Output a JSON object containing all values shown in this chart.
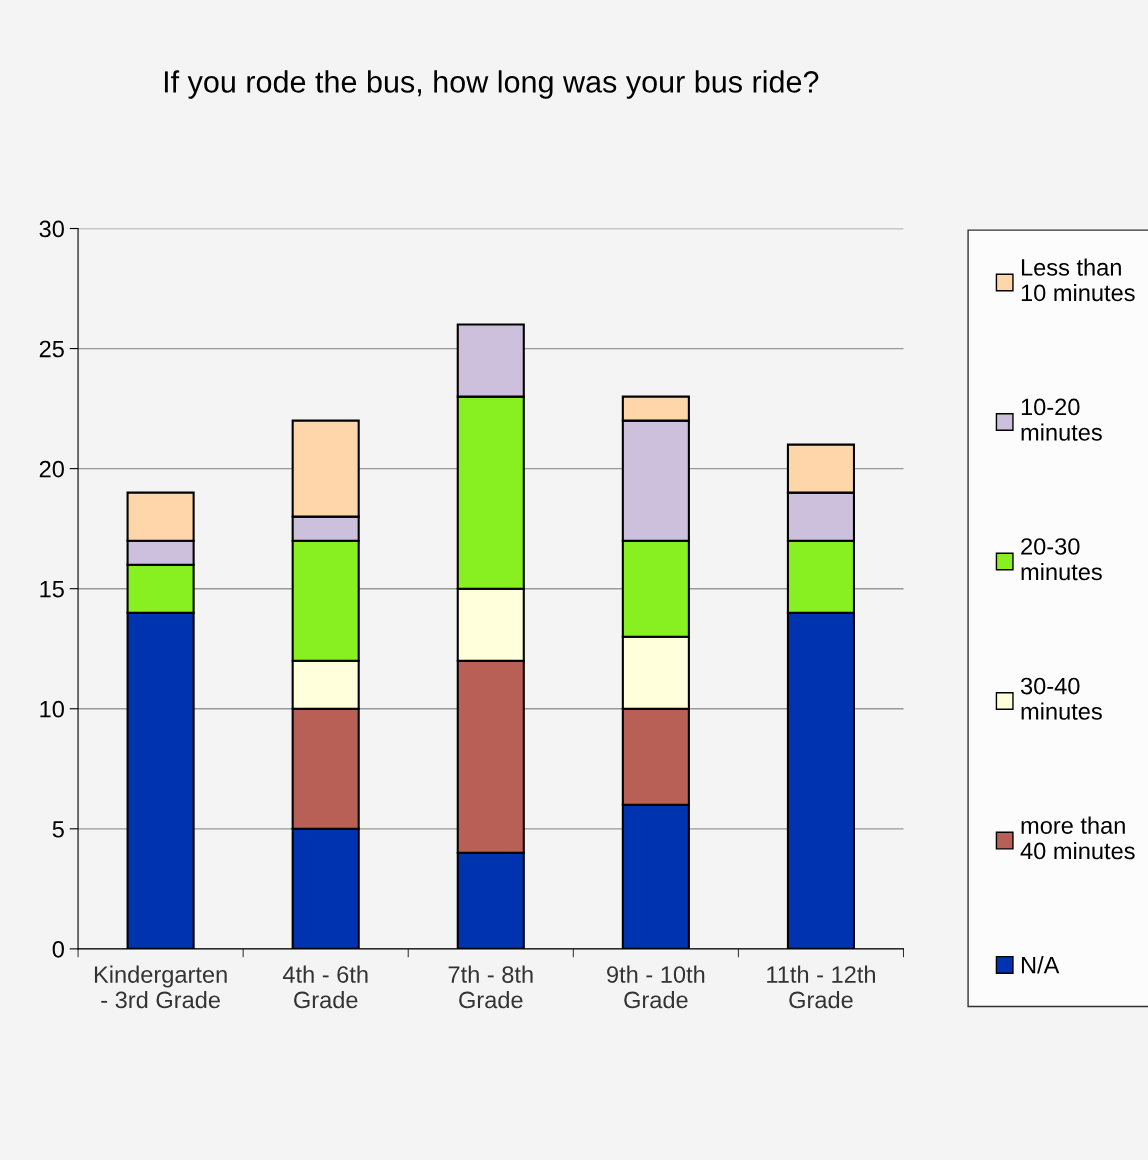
{
  "chart_data": {
    "type": "bar",
    "title": "If you rode the bus, how long was your bus ride?",
    "stacked": true,
    "categories": [
      "Kindergarten\n- 3rd Grade",
      "4th - 6th\nGrade",
      "7th - 8th\nGrade",
      "9th - 10th\nGrade",
      "11th - 12th\nGrade"
    ],
    "series": [
      {
        "name": "N/A",
        "color": "#0033b0",
        "values": [
          14,
          5,
          4,
          6,
          14
        ]
      },
      {
        "name": "more than\n40 minutes",
        "color": "#b86055",
        "values": [
          0,
          5,
          8,
          4,
          0
        ]
      },
      {
        "name": "30-40\nminutes",
        "color": "#ffffdc",
        "values": [
          0,
          2,
          3,
          3,
          0
        ]
      },
      {
        "name": "20-30\nminutes",
        "color": "#88f020",
        "values": [
          2,
          5,
          8,
          4,
          3
        ]
      },
      {
        "name": "10-20\nminutes",
        "color": "#cdc0dc",
        "values": [
          1,
          1,
          3,
          5,
          2
        ]
      },
      {
        "name": "Less than\n10 minutes",
        "color": "#ffd6aa",
        "values": [
          2,
          4,
          0,
          1,
          2
        ]
      }
    ],
    "ylim": [
      0,
      30
    ],
    "yticks": [
      0,
      5,
      10,
      15,
      20,
      25,
      30
    ],
    "grid": "y",
    "legend": "right"
  }
}
